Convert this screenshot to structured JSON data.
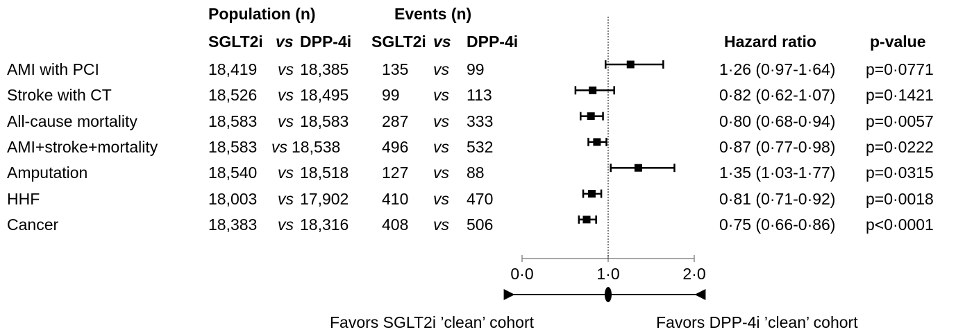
{
  "headers": {
    "population": "Population (n)",
    "events": "Events (n)",
    "pop_sglt2i": "SGLT2i",
    "pop_vs": "vs",
    "pop_dpp4i": "DPP-4i",
    "ev_sglt2i": "SGLT2i",
    "ev_vs": "vs",
    "ev_dpp4i": "DPP-4i",
    "hazard_ratio": "Hazard ratio",
    "p_value": "p-value"
  },
  "vs_label": "vs",
  "footer": {
    "favors_left": "Favors SGLT2i ’clean’ cohort",
    "favors_right": "Favors DPP-4i ’clean’ cohort"
  },
  "chart_data": {
    "type": "forest",
    "xlim": [
      0,
      2
    ],
    "reference_line": 1,
    "x_ticks": [
      "0·0",
      "1·0",
      "2·0"
    ],
    "rows": [
      {
        "label": "AMI with PCI",
        "pop_sglt2i": "18,419",
        "pop_dpp4i": "18,385",
        "ev_sglt2i": "135",
        "ev_dpp4i": "99",
        "hr": 1.26,
        "lo": 0.97,
        "hi": 1.64,
        "hr_text": "1·26 (0·97-1·64)",
        "p_text": "p=0·0771"
      },
      {
        "label": "Stroke with CT",
        "pop_sglt2i": "18,526",
        "pop_dpp4i": "18,495",
        "ev_sglt2i": "99",
        "ev_dpp4i": "113",
        "hr": 0.82,
        "lo": 0.62,
        "hi": 1.07,
        "hr_text": "0·82 (0·62-1·07)",
        "p_text": "p=0·1421"
      },
      {
        "label": "All-cause mortality",
        "pop_sglt2i": "18,583",
        "pop_dpp4i": "18,583",
        "ev_sglt2i": "287",
        "ev_dpp4i": "333",
        "hr": 0.8,
        "lo": 0.68,
        "hi": 0.94,
        "hr_text": "0·80 (0·68-0·94)",
        "p_text": "p=0·0057"
      },
      {
        "label": "AMI+stroke+mortality",
        "pop_sglt2i": "18,583",
        "pop_dpp4i": "18,538",
        "ev_sglt2i": "496",
        "ev_dpp4i": "532",
        "hr": 0.87,
        "lo": 0.77,
        "hi": 0.98,
        "hr_text": "0·87 (0·77-0·98)",
        "p_text": "p=0·0222"
      },
      {
        "label": "Amputation",
        "pop_sglt2i": "18,540",
        "pop_dpp4i": "18,518",
        "ev_sglt2i": "127",
        "ev_dpp4i": "88",
        "hr": 1.35,
        "lo": 1.03,
        "hi": 1.77,
        "hr_text": "1·35 (1·03-1·77)",
        "p_text": "p=0·0315"
      },
      {
        "label": "HHF",
        "pop_sglt2i": "18,003",
        "pop_dpp4i": "17,902",
        "ev_sglt2i": "410",
        "ev_dpp4i": "470",
        "hr": 0.81,
        "lo": 0.71,
        "hi": 0.92,
        "hr_text": "0·81 (0·71-0·92)",
        "p_text": "p=0·0018"
      },
      {
        "label": "Cancer",
        "pop_sglt2i": "18,383",
        "pop_dpp4i": "18,316",
        "ev_sglt2i": "408",
        "ev_dpp4i": "506",
        "hr": 0.75,
        "lo": 0.66,
        "hi": 0.86,
        "hr_text": "0·75 (0·66-0·86)",
        "p_text": "p<0·0001"
      }
    ]
  }
}
